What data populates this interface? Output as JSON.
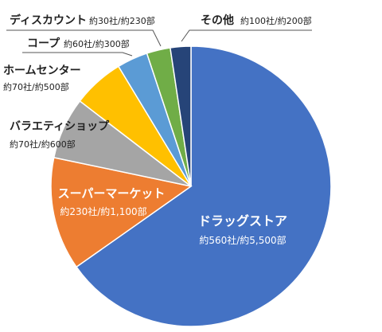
{
  "chart_data": {
    "type": "pie",
    "slices": [
      {
        "name": "ドラッグストア",
        "value": 5500,
        "label": "約560社/約5,500部",
        "color": "#4472C4"
      },
      {
        "name": "スーパーマーケット",
        "value": 1100,
        "label": "約230社/約1,100部",
        "color": "#ED7D31"
      },
      {
        "name": "バラエティショップ",
        "value": 600,
        "label": "約70社/約600部",
        "color": "#A5A5A5"
      },
      {
        "name": "ホームセンター",
        "value": 500,
        "label": "約70社/約500部",
        "color": "#FFC000"
      },
      {
        "name": "コープ",
        "value": 300,
        "label": "約60社/約300部",
        "color": "#5B9BD5"
      },
      {
        "name": "ディスカウント",
        "value": 230,
        "label": "約30社/約230部",
        "color": "#70AD47"
      },
      {
        "name": "その他",
        "value": 200,
        "label": "約100社/約200部",
        "color": "#264478"
      }
    ]
  }
}
